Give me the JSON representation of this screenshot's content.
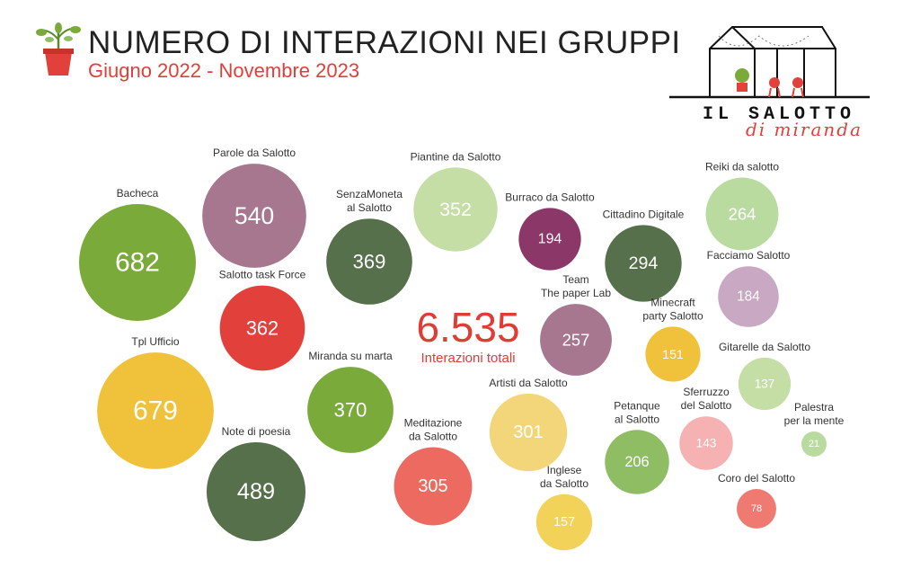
{
  "header": {
    "title": "NUMERO DI INTERAZIONI NEI GRUPPI",
    "subtitle": "Giugno 2022 - Novembre 2023"
  },
  "logo": {
    "line1": "IL SALOTTO",
    "line2": "di miranda"
  },
  "summary": {
    "total": "6.535",
    "label": "Interazioni totali"
  },
  "chart_data": {
    "type": "bubble",
    "title": "NUMERO DI INTERAZIONI NEI GRUPPI",
    "subtitle": "Giugno 2022 - Novembre 2023",
    "series": [
      {
        "label": [
          "Bacheca"
        ],
        "value": 682,
        "color": "#7aab3a"
      },
      {
        "label": [
          "Tpl Ufficio"
        ],
        "value": 679,
        "color": "#f0c23b"
      },
      {
        "label": [
          "Parole da Salotto"
        ],
        "value": 540,
        "color": "#a77790"
      },
      {
        "label": [
          "Note di poesia"
        ],
        "value": 489,
        "color": "#55704a"
      },
      {
        "label": [
          "Miranda su marta"
        ],
        "value": 370,
        "color": "#7aab3a"
      },
      {
        "label": [
          "SenzaMoneta",
          "al Salotto"
        ],
        "value": 369,
        "color": "#55704a"
      },
      {
        "label": [
          "Salotto task Force"
        ],
        "value": 362,
        "color": "#e2413b"
      },
      {
        "label": [
          "Piantine da Salotto"
        ],
        "value": 352,
        "color": "#c4dea5"
      },
      {
        "label": [
          "Meditazione",
          "da Salotto"
        ],
        "value": 305,
        "color": "#ec6a60"
      },
      {
        "label": [
          "Artisti da Salotto"
        ],
        "value": 301,
        "color": "#f3d67a"
      },
      {
        "label": [
          "Cittadino Digitale"
        ],
        "value": 294,
        "color": "#55704a"
      },
      {
        "label": [
          "Reiki da salotto"
        ],
        "value": 264,
        "color": "#b9dba0"
      },
      {
        "label": [
          "Team",
          "The paper Lab"
        ],
        "value": 257,
        "color": "#a77790"
      },
      {
        "label": [
          "Petanque",
          "al Salotto"
        ],
        "value": 206,
        "color": "#8fbd64"
      },
      {
        "label": [
          "Burraco da Salotto"
        ],
        "value": 194,
        "color": "#8b3768"
      },
      {
        "label": [
          "Facciamo Salotto"
        ],
        "value": 184,
        "color": "#c9a8c4"
      },
      {
        "label": [
          "Inglese",
          "da Salotto"
        ],
        "value": 157,
        "color": "#f3d259"
      },
      {
        "label": [
          "Minecraft",
          "party Salotto"
        ],
        "value": 151,
        "color": "#f0c23b"
      },
      {
        "label": [
          "Sferruzzo",
          "del Salotto"
        ],
        "value": 143,
        "color": "#f6b2b2"
      },
      {
        "label": [
          "Gitarelle da Salotto"
        ],
        "value": 137,
        "color": "#c4dea5"
      },
      {
        "label": [
          "Coro del Salotto"
        ],
        "value": 78,
        "color": "#ee7a72"
      },
      {
        "label": [
          "Palestra",
          "per la mente"
        ],
        "value": 21,
        "color": "#b9dba0"
      }
    ]
  }
}
